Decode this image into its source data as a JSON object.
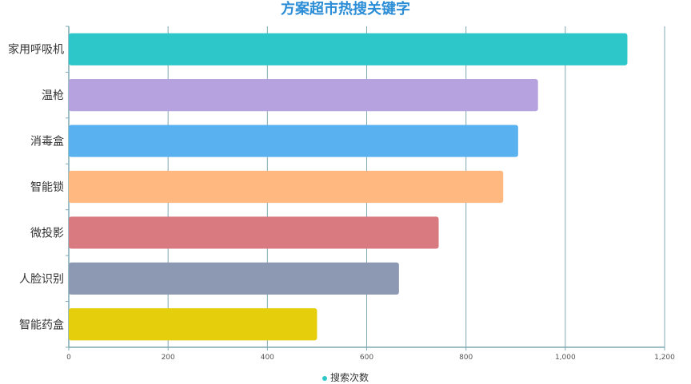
{
  "chart_data": {
    "type": "bar",
    "orientation": "horizontal",
    "title": "方案超市热搜关键字",
    "categories": [
      "家用呼吸机",
      "温枪",
      "消毒盒",
      "智能锁",
      "微投影",
      "人脸识别",
      "智能药盒"
    ],
    "series": [
      {
        "name": "搜索次数",
        "values": [
          1125,
          945,
          905,
          875,
          745,
          665,
          500
        ]
      }
    ],
    "bar_colors": [
      "#2ec7c9",
      "#b6a2de",
      "#5ab1ef",
      "#ffb980",
      "#d87a80",
      "#8d98b3",
      "#e5cf0d"
    ],
    "x_ticks": [
      "0",
      "200",
      "400",
      "600",
      "800",
      "1,000",
      "1,200"
    ],
    "xlim": [
      0,
      1200
    ],
    "grid": true,
    "legend_position": "bottom-center",
    "title_color": "#2b8dd6",
    "axis_color": "#7fa9b3"
  }
}
